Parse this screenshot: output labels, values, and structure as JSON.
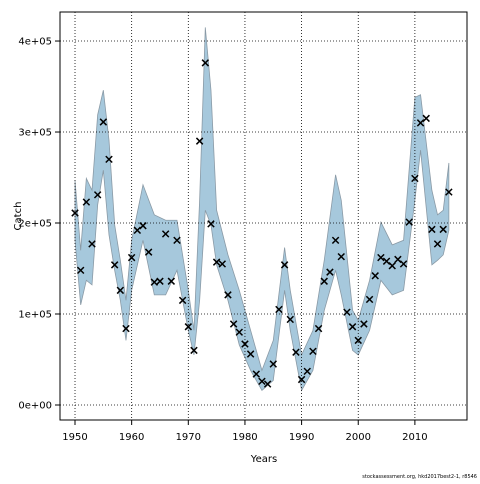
{
  "chart_data": {
    "type": "scatter",
    "x_label": "Years",
    "y_label": "Catch",
    "footnote": "stockassessment.org, hkd2017best2-1, r8546",
    "xlim": [
      1947.35,
      2019.2
    ],
    "ylim": [
      -16500,
      431900
    ],
    "xticks": [
      1950,
      1960,
      1970,
      1980,
      1990,
      2000,
      2010
    ],
    "yticks": [
      {
        "value": 0,
        "label": "0e+00"
      },
      {
        "value": 100000,
        "label": "1e+05"
      },
      {
        "value": 200000,
        "label": "2e+05"
      },
      {
        "value": 300000,
        "label": "3e+05"
      },
      {
        "value": 400000,
        "label": "4e+05"
      }
    ],
    "grid": true,
    "color": "#000000",
    "x": [
      1950,
      1951,
      1952,
      1953,
      1954,
      1955,
      1956,
      1957,
      1958,
      1959,
      1960,
      1961,
      1962,
      1963,
      1964,
      1965,
      1966,
      1967,
      1968,
      1969,
      1970,
      1971,
      1972,
      1973,
      1974,
      1975,
      1976,
      1977,
      1978,
      1979,
      1980,
      1981,
      1982,
      1983,
      1984,
      1985,
      1986,
      1987,
      1988,
      1989,
      1990,
      1991,
      1992,
      1993,
      1994,
      1995,
      1996,
      1997,
      1998,
      1999,
      2000,
      2001,
      2002,
      2003,
      2004,
      2005,
      2006,
      2007,
      2008,
      2009,
      2010,
      2011,
      2012,
      2013,
      2014,
      2015,
      2016
    ],
    "values": [
      211000,
      148000,
      223000,
      177000,
      231000,
      311000,
      270000,
      154000,
      126000,
      84000,
      162000,
      192000,
      197000,
      168000,
      135000,
      136000,
      188000,
      136000,
      181000,
      115000,
      86000,
      60000,
      290000,
      376000,
      199000,
      157000,
      155000,
      121000,
      89000,
      80000,
      67000,
      56000,
      34000,
      26000,
      23000,
      45000,
      105000,
      154000,
      94000,
      58000,
      28000,
      37000,
      59000,
      84000,
      136000,
      146000,
      181000,
      163000,
      102000,
      86000,
      71000,
      89000,
      116000,
      142000,
      162000,
      158000,
      153000,
      160000,
      155000,
      201000,
      249000,
      310000,
      315000,
      193000,
      177000,
      193000,
      234000
    ],
    "band": {
      "color": "#a6c8dc",
      "x": [
        1950,
        1951,
        1952,
        1953,
        1954,
        1955,
        1956,
        1957,
        1958,
        1959,
        1960,
        1962,
        1964,
        1966,
        1968,
        1970,
        1971,
        1972,
        1973,
        1974,
        1975,
        1977,
        1979,
        1981,
        1983,
        1985,
        1987,
        1988,
        1990,
        1992,
        1994,
        1996,
        1997,
        1999,
        2000,
        2002,
        2004,
        2006,
        2008,
        2010,
        2011,
        2013,
        2014,
        2015,
        2016
      ],
      "upper": [
        247000,
        170000,
        249000,
        236000,
        319000,
        346000,
        291000,
        198000,
        159000,
        115000,
        181000,
        242000,
        209000,
        203000,
        203000,
        126000,
        82000,
        225000,
        415000,
        346000,
        214000,
        165000,
        126000,
        82000,
        38000,
        71000,
        173000,
        126000,
        55000,
        82000,
        159000,
        253000,
        225000,
        104000,
        93000,
        137000,
        201000,
        176000,
        181000,
        338000,
        341000,
        236000,
        209000,
        214000,
        266000
      ],
      "lower": [
        181000,
        110000,
        137000,
        132000,
        220000,
        258000,
        187000,
        148000,
        115000,
        71000,
        126000,
        181000,
        121000,
        121000,
        148000,
        82000,
        55000,
        115000,
        214000,
        198000,
        154000,
        115000,
        66000,
        38000,
        16000,
        27000,
        126000,
        82000,
        16000,
        38000,
        104000,
        148000,
        121000,
        60000,
        55000,
        82000,
        137000,
        121000,
        126000,
        225000,
        280000,
        154000,
        159000,
        165000,
        192000
      ]
    }
  }
}
